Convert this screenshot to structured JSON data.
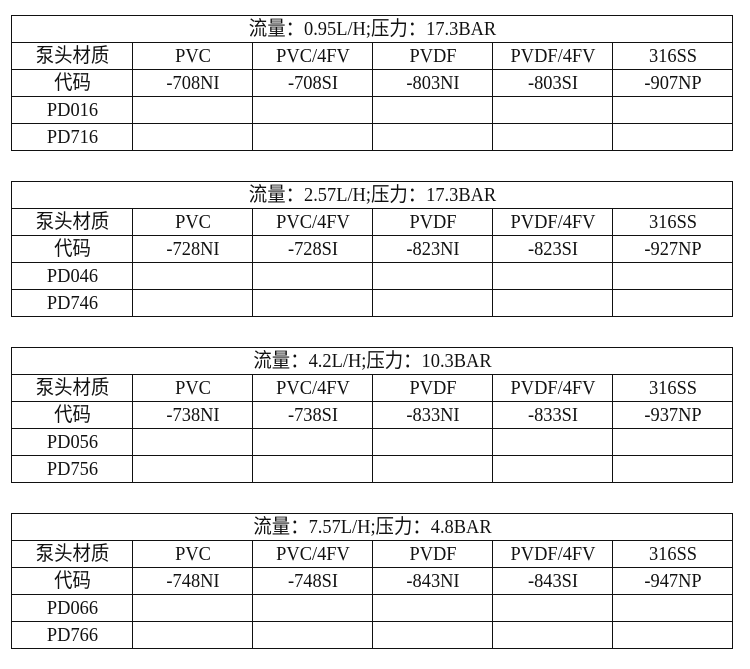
{
  "row_labels": {
    "material": "泵头材质",
    "code": "代码"
  },
  "columns": [
    "PVC",
    "PVC/4FV",
    "PVDF",
    "PVDF/4FV",
    "316SS"
  ],
  "tables": [
    {
      "title": "流量：0.95L/H;压力：17.3BAR",
      "codes": [
        "-708NI",
        "-708SI",
        "-803NI",
        "-803SI",
        "-907NP"
      ],
      "models": [
        "PD016",
        "PD716"
      ]
    },
    {
      "title": "流量：2.57L/H;压力：17.3BAR",
      "codes": [
        "-728NI",
        "-728SI",
        "-823NI",
        "-823SI",
        "-927NP"
      ],
      "models": [
        "PD046",
        "PD746"
      ]
    },
    {
      "title": "流量：4.2L/H;压力：10.3BAR",
      "codes": [
        "-738NI",
        "-738SI",
        "-833NI",
        "-833SI",
        "-937NP"
      ],
      "models": [
        "PD056",
        "PD756"
      ]
    },
    {
      "title": "流量：7.57L/H;压力：4.8BAR",
      "codes": [
        "-748NI",
        "-748SI",
        "-843NI",
        "-843SI",
        "-947NP"
      ],
      "models": [
        "PD066",
        "PD766"
      ]
    }
  ]
}
